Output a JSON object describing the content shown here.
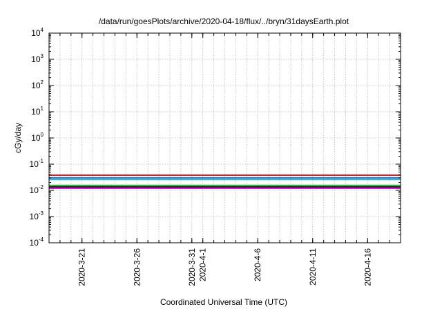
{
  "chart_data": {
    "type": "line",
    "title": "/data/run/goesPlots/archive/2020-04-18/flux/../bryn/31daysEarth.plot",
    "xlabel": "Coordinated Universal Time (UTC)",
    "ylabel": "cGy/day",
    "yscale": "log",
    "ylim": [
      0.0001,
      10000
    ],
    "xlim": [
      "2020-03-18",
      "2020-04-19"
    ],
    "grid": true,
    "y_ticks": [
      {
        "base": "10",
        "exp": "-4",
        "value": 0.0001
      },
      {
        "base": "10",
        "exp": "-3",
        "value": 0.001
      },
      {
        "base": "10",
        "exp": "-2",
        "value": 0.01
      },
      {
        "base": "10",
        "exp": "-1",
        "value": 0.1
      },
      {
        "base": "10",
        "exp": "0",
        "value": 1
      },
      {
        "base": "10",
        "exp": "1",
        "value": 10
      },
      {
        "base": "10",
        "exp": "2",
        "value": 100
      },
      {
        "base": "10",
        "exp": "3",
        "value": 1000
      },
      {
        "base": "10",
        "exp": "4",
        "value": 10000
      }
    ],
    "x_tick_labels": [
      {
        "label": "2020-3-21",
        "date": "2020-03-21"
      },
      {
        "label": "2020-3-26",
        "date": "2020-03-26"
      },
      {
        "label": "2020-3-31",
        "date": "2020-03-31"
      },
      {
        "label": "2020-4-1",
        "date": "2020-04-01"
      },
      {
        "label": "2020-4-6",
        "date": "2020-04-06"
      },
      {
        "label": "2020-4-11",
        "date": "2020-04-11"
      },
      {
        "label": "2020-4-16",
        "date": "2020-04-16"
      }
    ],
    "series": [
      {
        "color": "#e41a1c",
        "x": [
          "2020-03-18",
          "2020-04-19"
        ],
        "y": [
          0.038,
          0.038
        ]
      },
      {
        "color": "#1f6fd1",
        "x": [
          "2020-03-18",
          "2020-04-19"
        ],
        "y": [
          0.03,
          0.03
        ]
      },
      {
        "color": "#26b5c9",
        "x": [
          "2020-03-18",
          "2020-04-19"
        ],
        "y": [
          0.026,
          0.026
        ]
      },
      {
        "color": "#2ca02c",
        "x": [
          "2020-03-18",
          "2020-04-19"
        ],
        "y": [
          0.0155,
          0.0155
        ]
      },
      {
        "color": "#222222",
        "x": [
          "2020-03-18",
          "2020-04-19"
        ],
        "y": [
          0.0135,
          0.0135
        ]
      },
      {
        "color": "#d61ad6",
        "x": [
          "2020-03-18",
          "2020-04-19"
        ],
        "y": [
          0.012,
          0.012
        ]
      }
    ]
  }
}
